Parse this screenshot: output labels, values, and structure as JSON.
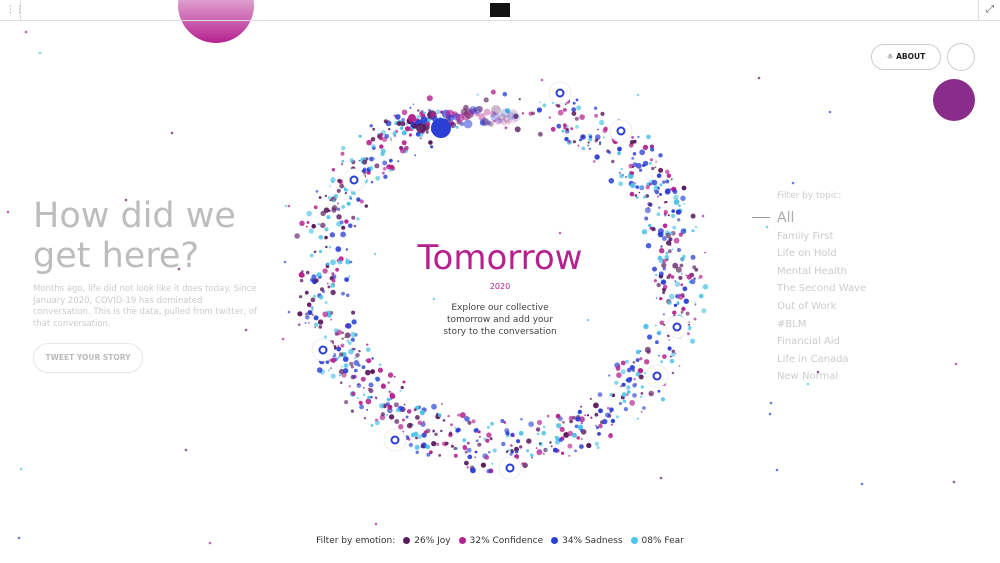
{
  "header": {
    "about": "ABOUT"
  },
  "intro": {
    "title": "How did we get here?",
    "text": "Months ago, life did not look like it does today. Since January 2020, COVID-19 has dominated conversation. This is the data, pulled from twitter, of that conversation.",
    "button": "TWEET YOUR STORY"
  },
  "center": {
    "title": "Tomorrow",
    "year": "2020",
    "text": "Explore our collective tomorrow and add your story to the conversation"
  },
  "topics": {
    "label": "Filter by topic:",
    "items": [
      "All",
      "Family First",
      "Life on Hold",
      "Mental Health",
      "The Second Wave",
      "Out of Work",
      "#BLM",
      "Financial Aid",
      "Life in Canada",
      "New Normal"
    ]
  },
  "emotions": {
    "label": "Filter by emotion:",
    "items": [
      {
        "label": "26% Joy",
        "color": "#5a1a5e"
      },
      {
        "label": "32% Confidence",
        "color": "#b5218f"
      },
      {
        "label": "34% Sadness",
        "color": "#2a3fd6"
      },
      {
        "label": "08% Fear",
        "color": "#4fc3e8"
      }
    ]
  }
}
